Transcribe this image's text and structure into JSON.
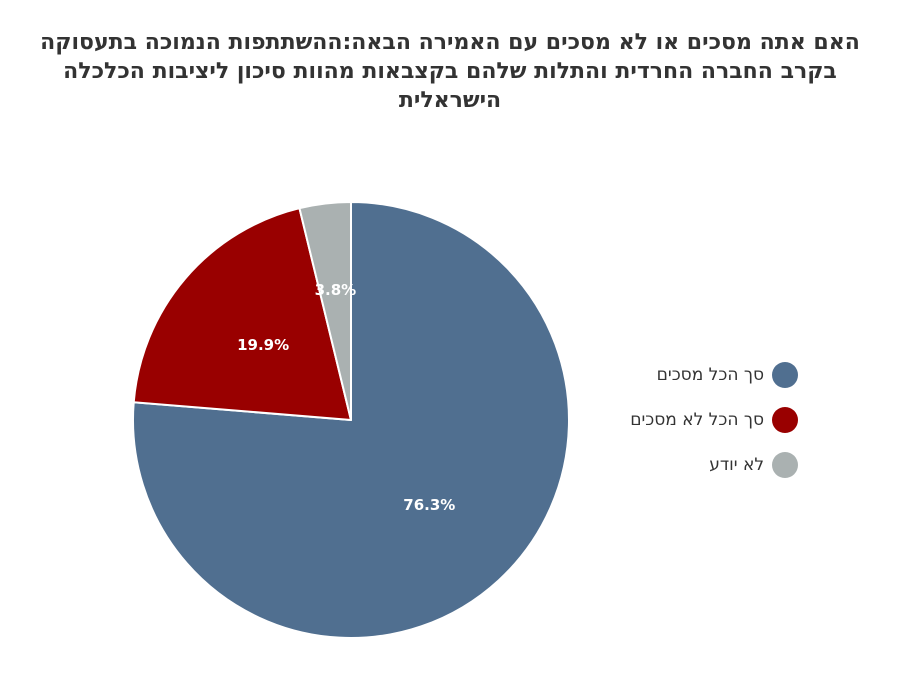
{
  "chart_data": {
    "type": "pie",
    "title": "האם אתה מסכים או לא מסכים עם האמירה הבאה:ההשתתפות הנמוכה בתעסוקה בקרב החברה החרדית והתלות שלהם בקצבאות מהוות סיכון ליציבות הכלכלה הישראלית",
    "categories": [
      "סך הכל מסכים",
      "סך הכל לא מסכים",
      "לא יודע"
    ],
    "values": [
      76.3,
      19.9,
      3.8
    ],
    "value_labels": [
      "76.3%",
      "19.9%",
      "3.8%"
    ],
    "colors": [
      "#506f90",
      "#990000",
      "#aab1b1"
    ],
    "legend_position": "right"
  }
}
